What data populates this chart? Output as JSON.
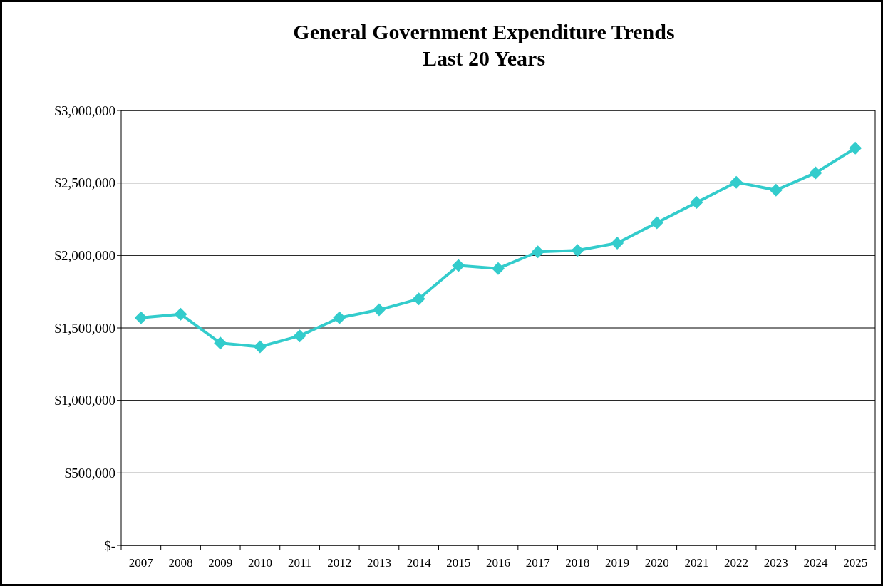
{
  "chart_data": {
    "type": "line",
    "title": "General Government Expenditure Trends\nLast 20 Years",
    "categories": [
      "2007",
      "2008",
      "2009",
      "2010",
      "2011",
      "2012",
      "2013",
      "2014",
      "2015",
      "2016",
      "2017",
      "2018",
      "2019",
      "2020",
      "2021",
      "2022",
      "2023",
      "2024",
      "2025"
    ],
    "series": [
      {
        "color": "#33cccc",
        "values": [
          1570000,
          1595000,
          1395000,
          1370000,
          1445000,
          1570000,
          1625000,
          1700000,
          1930000,
          1910000,
          2025000,
          2035000,
          2085000,
          2225000,
          2365000,
          2505000,
          2450000,
          2570000,
          2740000
        ]
      }
    ],
    "ylim": [
      0,
      3000000
    ],
    "yticks": [
      {
        "value": 0,
        "label": "$-"
      },
      {
        "value": 500000,
        "label": "$500,000"
      },
      {
        "value": 1000000,
        "label": "$1,000,000"
      },
      {
        "value": 1500000,
        "label": "$1,500,000"
      },
      {
        "value": 2000000,
        "label": "$2,000,000"
      },
      {
        "value": 2500000,
        "label": "$2,500,000"
      },
      {
        "value": 3000000,
        "label": "$3,000,000"
      }
    ],
    "grid": "y",
    "marker": "diamond",
    "line_style": "solid"
  }
}
